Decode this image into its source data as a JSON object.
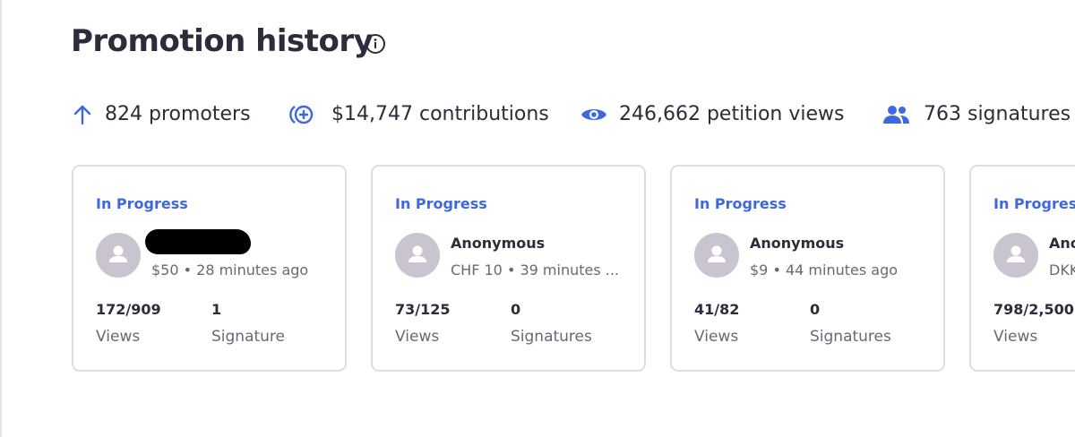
{
  "header": {
    "title": "Promotion history"
  },
  "stats": [
    {
      "icon": "arrow-up",
      "text": "824 promoters"
    },
    {
      "icon": "plus-circle",
      "text": "$14,747 contributions"
    },
    {
      "icon": "eye",
      "text": "246,662 petition views"
    },
    {
      "icon": "people",
      "text": "763 signatures"
    }
  ],
  "cards": [
    {
      "status": "In Progress",
      "detail": "$50 • 28 minutes ago",
      "views": "172/909",
      "views_label": "Views",
      "signatures": "1",
      "signatures_label": "Signature"
    },
    {
      "status": "In Progress",
      "name": "Anonymous",
      "detail": "CHF 10 • 39 minutes ...",
      "views": "73/125",
      "views_label": "Views",
      "signatures": "0",
      "signatures_label": "Signatures"
    },
    {
      "status": "In Progress",
      "name": "Anonymous",
      "detail": "$9 • 44 minutes ago",
      "views": "41/82",
      "views_label": "Views",
      "signatures": "0",
      "signatures_label": "Signatures"
    },
    {
      "status": "In Progress",
      "name": "Anonymous",
      "detail": "DKK",
      "views": "798/2,500",
      "views_label": "Views"
    }
  ]
}
